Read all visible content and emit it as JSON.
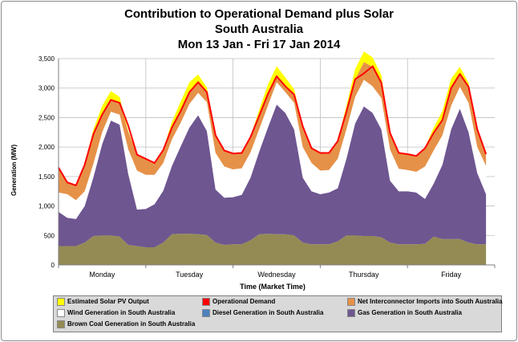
{
  "chart_data": {
    "type": "area",
    "title": "Contribution to Operational Demand plus Solar",
    "subtitle": "South Australia",
    "subtitle2": "Mon 13 Jan - Fri 17 Jan 2014",
    "xlabel": "Time (Market Time)",
    "ylabel": "Generation (MW)",
    "ylim": [
      0,
      3500
    ],
    "yticks": [
      0,
      500,
      1000,
      1500,
      2000,
      2500,
      3000,
      3500
    ],
    "ytick_labels": [
      "0",
      "500",
      "1,000",
      "1,500",
      "2,000",
      "2,500",
      "3,000",
      "3,500"
    ],
    "categories": [
      "Monday",
      "Tuesday",
      "Wednesday",
      "Thursday",
      "Friday"
    ],
    "x": [
      0.0,
      0.1,
      0.2,
      0.3,
      0.4,
      0.5,
      0.6,
      0.7,
      0.8,
      0.9,
      1.0,
      1.1,
      1.2,
      1.3,
      1.4,
      1.5,
      1.6,
      1.7,
      1.8,
      1.9,
      2.0,
      2.1,
      2.2,
      2.3,
      2.4,
      2.5,
      2.6,
      2.7,
      2.8,
      2.9,
      3.0,
      3.1,
      3.2,
      3.3,
      3.4,
      3.5,
      3.6,
      3.7,
      3.8,
      3.9,
      4.0,
      4.1,
      4.2,
      4.3,
      4.4,
      4.5,
      4.6,
      4.7,
      4.8,
      4.9
    ],
    "grid": true,
    "legend_position": "bottom",
    "series": [
      {
        "name": "Brown Coal Generation in South Australia",
        "color": "#948b54",
        "values": [
          320,
          320,
          320,
          380,
          490,
          500,
          500,
          480,
          340,
          320,
          300,
          300,
          380,
          520,
          530,
          530,
          520,
          510,
          380,
          340,
          350,
          350,
          420,
          520,
          530,
          520,
          520,
          500,
          380,
          350,
          350,
          350,
          400,
          500,
          500,
          490,
          490,
          470,
          380,
          350,
          350,
          350,
          360,
          480,
          440,
          440,
          440,
          380,
          350,
          350
        ]
      },
      {
        "name": "Diesel Generation in South Australia",
        "color": "#4f81bd",
        "values": [
          0,
          0,
          0,
          0,
          0,
          0,
          0,
          0,
          0,
          0,
          0,
          0,
          0,
          0,
          0,
          0,
          0,
          0,
          0,
          0,
          0,
          0,
          0,
          0,
          0,
          0,
          0,
          0,
          0,
          0,
          0,
          0,
          0,
          0,
          0,
          0,
          0,
          0,
          0,
          0,
          0,
          0,
          0,
          0,
          0,
          0,
          0,
          0,
          0,
          0
        ]
      },
      {
        "name": "Gas Generation in South Australia",
        "color": "#6e5691",
        "values": [
          580,
          480,
          460,
          620,
          1000,
          1550,
          1950,
          1900,
          1200,
          620,
          650,
          730,
          880,
          1160,
          1480,
          1800,
          2020,
          1760,
          900,
          800,
          800,
          840,
          1060,
          1400,
          1800,
          2200,
          2060,
          1800,
          1100,
          900,
          850,
          880,
          900,
          1300,
          1900,
          2200,
          2090,
          1830,
          1050,
          900,
          900,
          880,
          760,
          900,
          1260,
          1860,
          2210,
          1870,
          1210,
          850
        ]
      },
      {
        "name": "Wind Generation in South Australia",
        "color": "#ffffff",
        "values": [
          330,
          400,
          320,
          250,
          230,
          200,
          150,
          170,
          420,
          660,
          580,
          500,
          470,
          450,
          400,
          400,
          380,
          490,
          620,
          530,
          470,
          450,
          430,
          380,
          370,
          380,
          350,
          450,
          520,
          480,
          400,
          380,
          500,
          500,
          450,
          450,
          450,
          530,
          530,
          380,
          360,
          350,
          550,
          560,
          500,
          400,
          370,
          500,
          440,
          480
        ]
      },
      {
        "name": "Net Interconnector Imports into South Australia",
        "color": "#e69148",
        "values": [
          400,
          200,
          250,
          450,
          500,
          300,
          200,
          200,
          300,
          270,
          270,
          200,
          220,
          200,
          200,
          200,
          180,
          170,
          300,
          270,
          270,
          260,
          260,
          230,
          200,
          100,
          100,
          140,
          350,
          250,
          300,
          290,
          300,
          300,
          300,
          300,
          330,
          290,
          280,
          270,
          270,
          270,
          310,
          300,
          260,
          300,
          220,
          270,
          300,
          200
        ]
      },
      {
        "name": "Estimated Solar PV Output",
        "color": "#ffff00",
        "values": [
          0,
          0,
          0,
          10,
          80,
          150,
          150,
          100,
          10,
          0,
          0,
          0,
          10,
          100,
          160,
          170,
          130,
          80,
          10,
          0,
          0,
          0,
          10,
          100,
          160,
          170,
          150,
          90,
          10,
          0,
          0,
          0,
          10,
          100,
          170,
          180,
          160,
          100,
          10,
          0,
          0,
          0,
          10,
          90,
          150,
          160,
          120,
          70,
          10,
          0
        ]
      },
      {
        "name": "Operational Demand",
        "color": "#ff0000",
        "type": "line",
        "values": [
          1650,
          1400,
          1350,
          1700,
          2220,
          2550,
          2800,
          2750,
          2360,
          1870,
          1800,
          1730,
          1950,
          2330,
          2610,
          2930,
          3100,
          2930,
          2200,
          1940,
          1890,
          1900,
          2170,
          2530,
          2900,
          3200,
          3030,
          2890,
          2350,
          1980,
          1900,
          1900,
          2100,
          2600,
          3150,
          3250,
          3370,
          3090,
          2240,
          1900,
          1880,
          1850,
          1980,
          2240,
          2460,
          3000,
          3240,
          3020,
          2300,
          1880
        ]
      }
    ]
  }
}
